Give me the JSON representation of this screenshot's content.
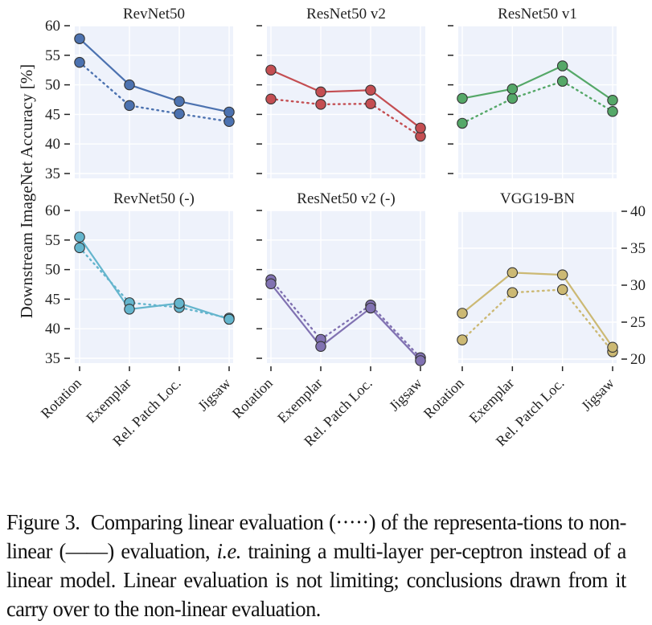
{
  "chart_data": {
    "type": "line",
    "ylabel": "Downstream ImageNet Accuracy [%]",
    "categories": [
      "Rotation",
      "Exemplar",
      "Rel. Patch Loc.",
      "Jigsaw"
    ],
    "legend": {
      "linear": "dotted line",
      "non_linear": "solid line"
    },
    "grid": true,
    "panels": [
      {
        "title": "RevNet50",
        "color": "#4c72b0",
        "ylim": [
          35,
          60
        ],
        "yticks": [
          35,
          40,
          45,
          50,
          55,
          60
        ],
        "yaxis_side": "left",
        "series": [
          {
            "name": "non-linear",
            "style": "solid",
            "values": [
              57.8,
              50.0,
              47.2,
              45.4
            ]
          },
          {
            "name": "linear",
            "style": "dotted",
            "values": [
              53.8,
              46.5,
              45.1,
              43.8
            ]
          }
        ]
      },
      {
        "title": "ResNet50 v2",
        "color": "#c44e52",
        "ylim": [
          35,
          60
        ],
        "yticks": [
          35,
          40,
          45,
          50,
          55,
          60
        ],
        "yaxis_side": "none",
        "series": [
          {
            "name": "non-linear",
            "style": "solid",
            "values": [
              52.5,
              48.8,
              49.1,
              42.7
            ]
          },
          {
            "name": "linear",
            "style": "dotted",
            "values": [
              47.6,
              46.7,
              46.8,
              41.3
            ]
          }
        ]
      },
      {
        "title": "ResNet50 v1",
        "color": "#55a868",
        "ylim": [
          35,
          60
        ],
        "yticks": [
          35,
          40,
          45,
          50,
          55,
          60
        ],
        "yaxis_side": "none",
        "series": [
          {
            "name": "non-linear",
            "style": "solid",
            "values": [
              47.7,
              49.3,
              53.2,
              47.4
            ]
          },
          {
            "name": "linear",
            "style": "dotted",
            "values": [
              43.5,
              47.7,
              50.6,
              45.5
            ]
          }
        ]
      },
      {
        "title": "RevNet50 (-)",
        "color": "#64b5cd",
        "ylim": [
          35,
          60
        ],
        "yticks": [
          35,
          40,
          45,
          50,
          55,
          60
        ],
        "yaxis_side": "left",
        "series": [
          {
            "name": "non-linear",
            "style": "solid",
            "values": [
              55.5,
              43.3,
              44.3,
              41.6
            ]
          },
          {
            "name": "linear",
            "style": "dotted",
            "values": [
              53.7,
              44.4,
              43.6,
              41.8
            ]
          }
        ]
      },
      {
        "title": "ResNet50 v2 (-)",
        "color": "#8172b2",
        "ylim": [
          35,
          60
        ],
        "yticks": [
          35,
          40,
          45,
          50,
          55,
          60
        ],
        "yaxis_side": "none",
        "series": [
          {
            "name": "non-linear",
            "style": "solid",
            "values": [
              47.6,
              37.0,
              43.5,
              34.6
            ]
          },
          {
            "name": "linear",
            "style": "dotted",
            "values": [
              48.3,
              38.2,
              44.0,
              35.1
            ]
          }
        ]
      },
      {
        "title": "VGG19-BN",
        "color": "#ccb974",
        "ylim": [
          19.3,
          40
        ],
        "yticks": [
          20,
          25,
          30,
          35,
          40
        ],
        "yaxis_side": "right",
        "series": [
          {
            "name": "non-linear",
            "style": "solid",
            "values": [
              26.2,
              31.7,
              31.4,
              21.6
            ]
          },
          {
            "name": "linear",
            "style": "dotted",
            "values": [
              22.6,
              29.0,
              29.4,
              21.0
            ]
          }
        ]
      }
    ]
  },
  "caption": {
    "label": "Figure 3.",
    "part1": "Comparing linear evaluation (·····) of the representa-tions to non-linear (——) evaluation, ",
    "ie": "i.e.",
    "part2": " training a multi-layer per-ceptron instead of a linear model. Linear evaluation is not limiting; conclusions drawn from it carry over to the non-linear evaluation."
  }
}
